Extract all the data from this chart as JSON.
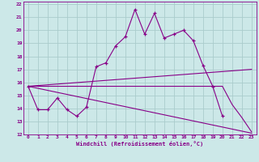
{
  "xlabel": "Windchill (Refroidissement éolien,°C)",
  "background_color": "#cce8e8",
  "grid_color": "#aacccc",
  "line_color": "#880088",
  "xlim": [
    -0.5,
    23.5
  ],
  "ylim": [
    12,
    22.2
  ],
  "xticks": [
    0,
    1,
    2,
    3,
    4,
    5,
    6,
    7,
    8,
    9,
    10,
    11,
    12,
    13,
    14,
    15,
    16,
    17,
    18,
    19,
    20,
    21,
    22,
    23
  ],
  "yticks": [
    12,
    13,
    14,
    15,
    16,
    17,
    18,
    19,
    20,
    21,
    22
  ],
  "series": [
    {
      "x": [
        0,
        1,
        2,
        3,
        4,
        5,
        6,
        7,
        8,
        9,
        10,
        11,
        12,
        13,
        14,
        15,
        16,
        17,
        18,
        19,
        20
      ],
      "y": [
        15.7,
        13.9,
        13.9,
        14.8,
        13.9,
        13.4,
        14.1,
        17.2,
        17.5,
        18.8,
        19.5,
        21.6,
        19.7,
        21.3,
        19.4,
        19.7,
        20.0,
        19.2,
        17.3,
        15.7,
        13.4
      ]
    },
    {
      "x": [
        0,
        23
      ],
      "y": [
        15.7,
        12.1
      ]
    },
    {
      "x": [
        0,
        23
      ],
      "y": [
        15.7,
        17.0
      ]
    },
    {
      "x": [
        0,
        20,
        21,
        22,
        23
      ],
      "y": [
        15.7,
        15.7,
        14.3,
        13.3,
        12.2
      ]
    }
  ]
}
